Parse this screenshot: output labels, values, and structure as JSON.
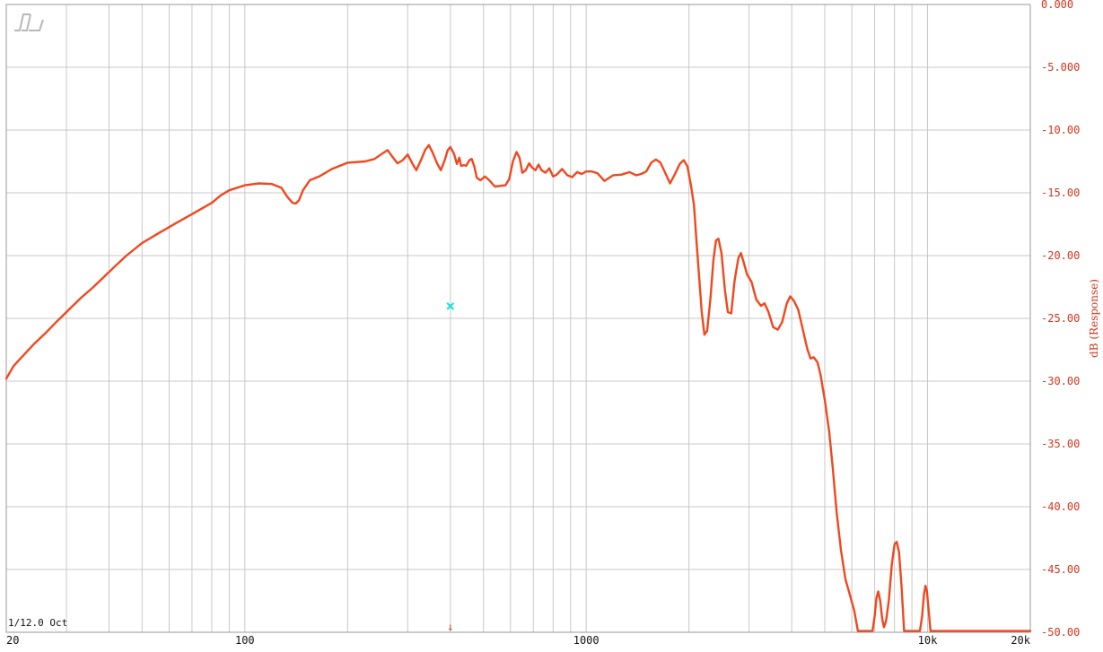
{
  "chart_data": {
    "type": "line",
    "title": "",
    "xlabel": "",
    "ylabel": "dB (Response)",
    "x_scale": "log",
    "xlim": [
      20,
      20000
    ],
    "ylim": [
      -50,
      0
    ],
    "grid": true,
    "legend": "none",
    "x_tick_labels": [
      {
        "value": 20,
        "label": "20"
      },
      {
        "value": 100,
        "label": "100"
      },
      {
        "value": 1000,
        "label": "1000"
      },
      {
        "value": 10000,
        "label": "10k"
      },
      {
        "value": 20000,
        "label": "20k"
      }
    ],
    "y_tick_labels": [
      "0.000",
      "-5.000",
      "-10.00",
      "-15.00",
      "-20.00",
      "-25.00",
      "-30.00",
      "-35.00",
      "-40.00",
      "-45.00",
      "-50.00"
    ],
    "y_tick_values": [
      0,
      -5,
      -10,
      -15,
      -20,
      -25,
      -30,
      -35,
      -40,
      -45,
      -50
    ],
    "smoothing_label": "1/12.0 Oct",
    "logo_text": "SL",
    "marker": {
      "x": 400,
      "y": -24.0,
      "symbol": "×",
      "color": "#22dde0"
    },
    "bottom_marker": {
      "x": 400,
      "symbol": "↓"
    },
    "colors": {
      "curve": "#f0481e",
      "axis_text": "#d2361e",
      "grid": "#c8c8c8",
      "frame": "#999999"
    },
    "series": [
      {
        "values": [
          [
            20,
            -29.8
          ],
          [
            21,
            -28.8
          ],
          [
            22,
            -28.2
          ],
          [
            24,
            -27.1
          ],
          [
            26,
            -26.2
          ],
          [
            28,
            -25.3
          ],
          [
            30,
            -24.5
          ],
          [
            33,
            -23.4
          ],
          [
            36,
            -22.5
          ],
          [
            40,
            -21.3
          ],
          [
            45,
            -20.0
          ],
          [
            50,
            -19.0
          ],
          [
            56,
            -18.2
          ],
          [
            63,
            -17.4
          ],
          [
            71,
            -16.6
          ],
          [
            80,
            -15.8
          ],
          [
            85,
            -15.2
          ],
          [
            90,
            -14.8
          ],
          [
            100,
            -14.4
          ],
          [
            110,
            -14.25
          ],
          [
            120,
            -14.3
          ],
          [
            128,
            -14.6
          ],
          [
            133,
            -15.3
          ],
          [
            138,
            -15.8
          ],
          [
            141,
            -15.85
          ],
          [
            144,
            -15.6
          ],
          [
            148,
            -14.8
          ],
          [
            155,
            -14.0
          ],
          [
            165,
            -13.7
          ],
          [
            180,
            -13.1
          ],
          [
            200,
            -12.6
          ],
          [
            225,
            -12.5
          ],
          [
            240,
            -12.3
          ],
          [
            255,
            -11.8
          ],
          [
            262,
            -11.6
          ],
          [
            270,
            -12.1
          ],
          [
            280,
            -12.65
          ],
          [
            290,
            -12.4
          ],
          [
            300,
            -11.95
          ],
          [
            310,
            -12.7
          ],
          [
            318,
            -13.2
          ],
          [
            328,
            -12.4
          ],
          [
            338,
            -11.55
          ],
          [
            346,
            -11.2
          ],
          [
            355,
            -11.8
          ],
          [
            365,
            -12.6
          ],
          [
            375,
            -13.2
          ],
          [
            385,
            -12.4
          ],
          [
            393,
            -11.6
          ],
          [
            400,
            -11.35
          ],
          [
            410,
            -11.9
          ],
          [
            418,
            -12.7
          ],
          [
            425,
            -12.2
          ],
          [
            430,
            -12.85
          ],
          [
            438,
            -12.8
          ],
          [
            445,
            -12.85
          ],
          [
            455,
            -12.4
          ],
          [
            462,
            -12.3
          ],
          [
            470,
            -12.9
          ],
          [
            478,
            -13.8
          ],
          [
            490,
            -14.0
          ],
          [
            505,
            -13.7
          ],
          [
            520,
            -14.0
          ],
          [
            540,
            -14.5
          ],
          [
            560,
            -14.45
          ],
          [
            580,
            -14.4
          ],
          [
            595,
            -13.9
          ],
          [
            610,
            -12.5
          ],
          [
            625,
            -11.75
          ],
          [
            638,
            -12.2
          ],
          [
            650,
            -13.4
          ],
          [
            665,
            -13.2
          ],
          [
            680,
            -12.65
          ],
          [
            695,
            -13.0
          ],
          [
            710,
            -13.2
          ],
          [
            725,
            -12.75
          ],
          [
            740,
            -13.2
          ],
          [
            760,
            -13.4
          ],
          [
            780,
            -13.05
          ],
          [
            800,
            -13.7
          ],
          [
            820,
            -13.55
          ],
          [
            850,
            -13.1
          ],
          [
            880,
            -13.6
          ],
          [
            910,
            -13.75
          ],
          [
            940,
            -13.35
          ],
          [
            970,
            -13.5
          ],
          [
            1000,
            -13.3
          ],
          [
            1040,
            -13.3
          ],
          [
            1080,
            -13.45
          ],
          [
            1130,
            -14.05
          ],
          [
            1200,
            -13.6
          ],
          [
            1270,
            -13.55
          ],
          [
            1340,
            -13.35
          ],
          [
            1400,
            -13.6
          ],
          [
            1450,
            -13.5
          ],
          [
            1500,
            -13.3
          ],
          [
            1550,
            -12.6
          ],
          [
            1600,
            -12.35
          ],
          [
            1650,
            -12.6
          ],
          [
            1700,
            -13.35
          ],
          [
            1760,
            -14.25
          ],
          [
            1820,
            -13.5
          ],
          [
            1880,
            -12.7
          ],
          [
            1930,
            -12.4
          ],
          [
            1980,
            -12.9
          ],
          [
            2030,
            -14.5
          ],
          [
            2070,
            -16.0
          ],
          [
            2100,
            -18.5
          ],
          [
            2140,
            -21.5
          ],
          [
            2180,
            -24.5
          ],
          [
            2220,
            -26.3
          ],
          [
            2260,
            -26.0
          ],
          [
            2310,
            -23.5
          ],
          [
            2360,
            -20.3
          ],
          [
            2400,
            -18.8
          ],
          [
            2440,
            -18.65
          ],
          [
            2490,
            -19.8
          ],
          [
            2550,
            -22.8
          ],
          [
            2600,
            -24.5
          ],
          [
            2660,
            -24.6
          ],
          [
            2720,
            -22.0
          ],
          [
            2790,
            -20.2
          ],
          [
            2840,
            -19.8
          ],
          [
            2890,
            -20.5
          ],
          [
            2960,
            -21.5
          ],
          [
            3050,
            -22.1
          ],
          [
            3150,
            -23.5
          ],
          [
            3250,
            -24.0
          ],
          [
            3330,
            -23.8
          ],
          [
            3420,
            -24.5
          ],
          [
            3530,
            -25.7
          ],
          [
            3640,
            -25.9
          ],
          [
            3750,
            -25.3
          ],
          [
            3870,
            -23.8
          ],
          [
            3960,
            -23.25
          ],
          [
            4060,
            -23.6
          ],
          [
            4180,
            -24.3
          ],
          [
            4320,
            -26.0
          ],
          [
            4440,
            -27.4
          ],
          [
            4540,
            -28.2
          ],
          [
            4640,
            -28.1
          ],
          [
            4760,
            -28.5
          ],
          [
            4860,
            -29.5
          ],
          [
            5000,
            -31.5
          ],
          [
            5150,
            -34.0
          ],
          [
            5280,
            -37.0
          ],
          [
            5420,
            -40.5
          ],
          [
            5580,
            -43.5
          ],
          [
            5750,
            -45.8
          ],
          [
            5920,
            -47.0
          ],
          [
            6100,
            -48.3
          ],
          [
            6250,
            -49.9
          ],
          [
            6900,
            -49.9
          ],
          [
            7000,
            -48.7
          ],
          [
            7080,
            -47.3
          ],
          [
            7170,
            -46.75
          ],
          [
            7270,
            -47.5
          ],
          [
            7360,
            -48.9
          ],
          [
            7450,
            -49.6
          ],
          [
            7560,
            -49.1
          ],
          [
            7700,
            -47.5
          ],
          [
            7860,
            -44.6
          ],
          [
            8000,
            -43.0
          ],
          [
            8120,
            -42.8
          ],
          [
            8250,
            -43.6
          ],
          [
            8390,
            -46.3
          ],
          [
            8540,
            -49.9
          ],
          [
            9500,
            -49.9
          ],
          [
            9640,
            -48.7
          ],
          [
            9760,
            -47.0
          ],
          [
            9860,
            -46.3
          ],
          [
            9960,
            -46.7
          ],
          [
            10080,
            -48.3
          ],
          [
            10200,
            -49.9
          ],
          [
            20000,
            -49.9
          ]
        ]
      }
    ]
  }
}
